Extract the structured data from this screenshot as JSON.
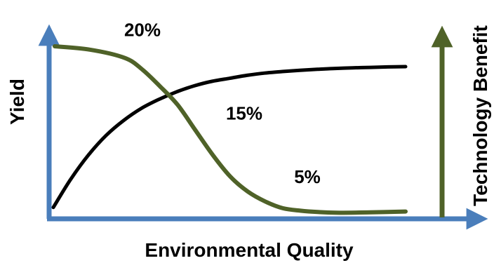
{
  "chart_data": {
    "type": "line",
    "title": "",
    "xlabel": "Environmental Quality",
    "ylabel": "Yield",
    "y2label": "Technology Benefit",
    "xlim": [
      0,
      100
    ],
    "ylim": [
      0,
      100
    ],
    "y2lim": [
      0,
      100
    ],
    "grid": false,
    "legend": "none",
    "series": [
      {
        "axis": "left",
        "color": "#000000",
        "x": [
          0,
          5,
          10,
          15,
          20,
          25,
          30,
          35,
          40,
          45,
          50,
          55,
          60,
          65,
          70,
          75,
          80,
          85,
          90,
          95,
          100
        ],
        "values": [
          2,
          21,
          37,
          50,
          60,
          68,
          74,
          79,
          83,
          86,
          88,
          90,
          91.5,
          92.5,
          93.3,
          94,
          94.6,
          95,
          95.3,
          95.6,
          95.8
        ]
      },
      {
        "axis": "right",
        "color": "#4f6228",
        "x": [
          0,
          10,
          20,
          25,
          30,
          35,
          40,
          45,
          50,
          55,
          60,
          65,
          70,
          75,
          80,
          90,
          100
        ],
        "values": [
          100,
          98,
          93,
          86,
          76,
          65,
          50,
          35,
          22,
          13,
          7,
          3,
          1.5,
          0.7,
          0.3,
          0.5,
          1
        ]
      }
    ],
    "annotations": [
      {
        "text": "20%",
        "x": 25,
        "y": 106
      },
      {
        "text": "15%",
        "x": 54,
        "y": 56
      },
      {
        "text": "5%",
        "x": 72,
        "y": 18
      }
    ],
    "colors": {
      "axes": "#4a7ebb",
      "right_axis": "#4f6228",
      "yield_curve": "#000000",
      "benefit_curve": "#4f6228"
    }
  }
}
